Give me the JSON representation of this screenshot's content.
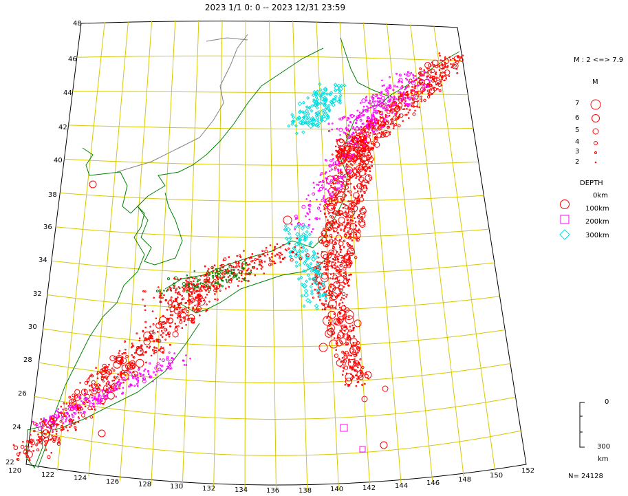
{
  "title": "2023 1/1  0: 0 -- 2023 12/31 23:59",
  "lat_labels": [
    "48",
    "46",
    "44",
    "42",
    "40",
    "38",
    "36",
    "34",
    "32",
    "30",
    "28",
    "26",
    "24",
    "22"
  ],
  "lon_labels": [
    "120",
    "122",
    "124",
    "126",
    "128",
    "130",
    "132",
    "134",
    "136",
    "138",
    "140",
    "142",
    "144",
    "146",
    "148",
    "150",
    "152"
  ],
  "legend": {
    "magnitude_range": "M : 2 <=> 7.9",
    "magnitude_header": "M",
    "magnitudes": [
      "7",
      "6",
      "5",
      "4",
      "3",
      "2"
    ],
    "depth_header": "DEPTH",
    "depths": [
      "0km",
      "100km",
      "200km",
      "300km"
    ],
    "depth_scale_top": "0",
    "depth_scale_bottom": "300",
    "depth_scale_unit": "km",
    "count": "N= 24128"
  },
  "colors": {
    "shallow": "#ff0000",
    "intermediate": "#ff00ff",
    "deep": "#00e0e0",
    "grid": "#d8c800",
    "coast": "#008000",
    "border": "#808080"
  },
  "icons": [
    "circle-icon",
    "square-icon",
    "diamond-icon"
  ]
}
